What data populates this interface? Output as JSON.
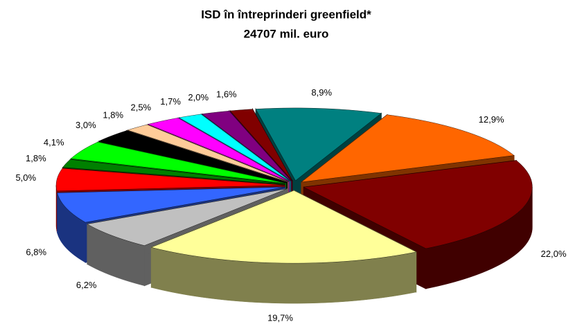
{
  "chart_data": {
    "type": "pie3d",
    "title": "ISD în întreprinderi greenfield*",
    "subtitle": "24707 mil. euro",
    "values": [
      8.9,
      12.9,
      22.0,
      19.7,
      6.2,
      6.8,
      5.0,
      1.8,
      4.1,
      3.0,
      1.8,
      2.5,
      1.7,
      2.0,
      1.6
    ],
    "value_labels": [
      "8,9%",
      "12,9%",
      "22,0%",
      "19,7%",
      "6,2%",
      "6,8%",
      "5,0%",
      "1,8%",
      "4,1%",
      "3,0%",
      "1,8%",
      "2,5%",
      "1,7%",
      "2,0%",
      "1,6%"
    ],
    "colors": [
      "#008080",
      "#FF6600",
      "#800000",
      "#FFFF99",
      "#C0C0C0",
      "#3366FF",
      "#FF0000",
      "#008000",
      "#00FF00",
      "#000000",
      "#FFCC99",
      "#FF00FF",
      "#00FFFF",
      "#800080",
      "#800000"
    ]
  }
}
